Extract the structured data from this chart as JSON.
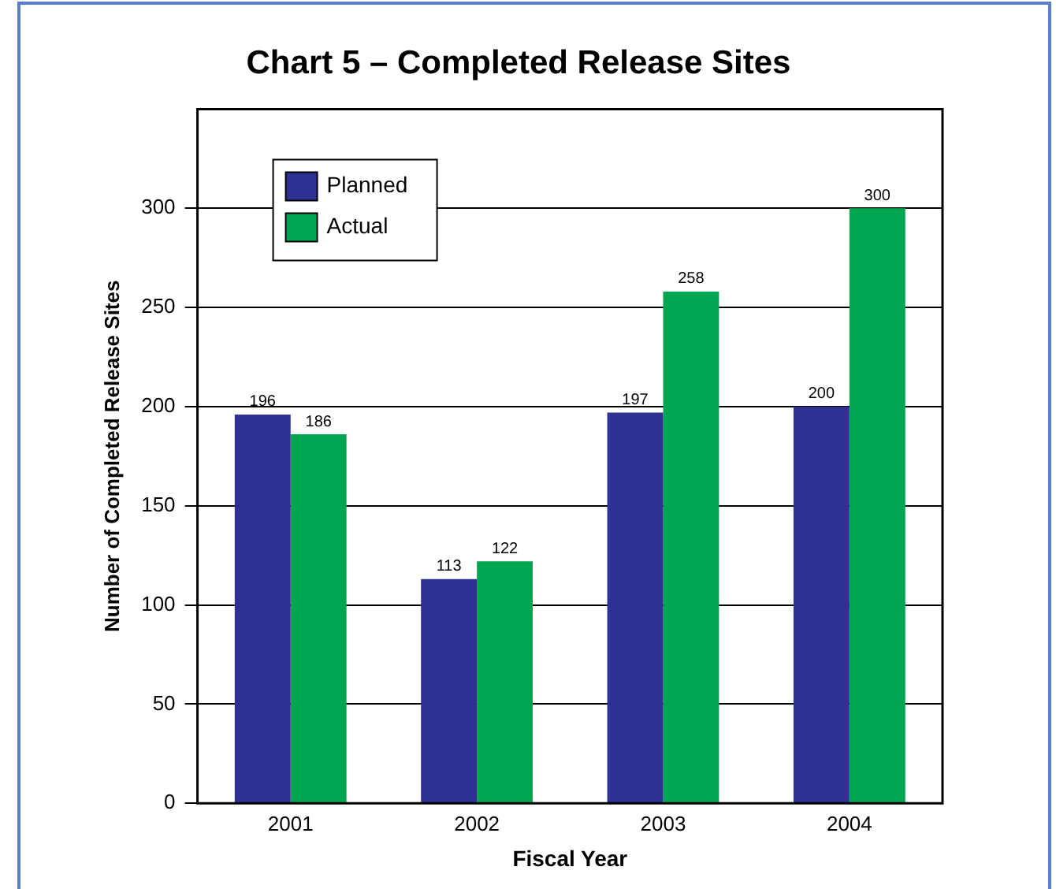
{
  "chart_data": {
    "type": "bar",
    "title": "Chart 5 – Completed Release Sites",
    "xlabel": "Fiscal Year",
    "ylabel": "Number of Completed Release Sites",
    "categories": [
      "2001",
      "2002",
      "2003",
      "2004"
    ],
    "series": [
      {
        "name": "Planned",
        "color": "#2e3192",
        "values": [
          196,
          113,
          197,
          200
        ]
      },
      {
        "name": "Actual",
        "color": "#00a651",
        "values": [
          186,
          122,
          258,
          300
        ]
      }
    ],
    "ylim": [
      0,
      350
    ],
    "yticks": [
      0,
      50,
      100,
      150,
      200,
      250,
      300
    ],
    "grid": "y",
    "legend": "top left",
    "data_labels": true
  }
}
